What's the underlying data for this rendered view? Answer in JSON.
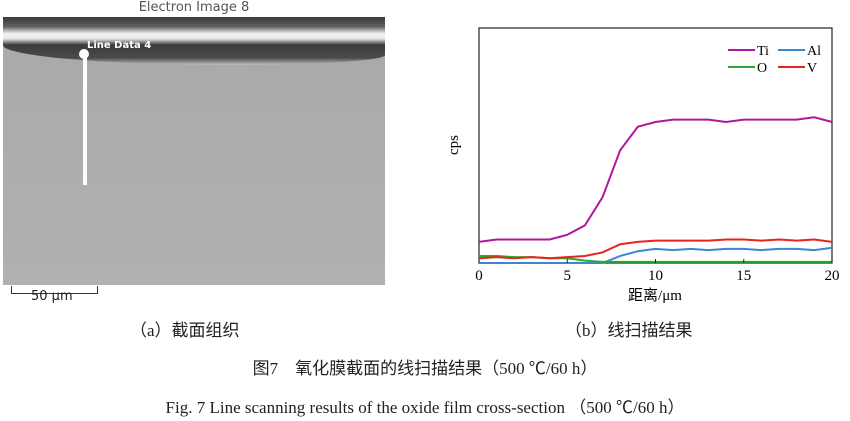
{
  "panel_a": {
    "title": "Electron Image 8",
    "line_label": "Line Data 4",
    "scale_bar": "50 µm",
    "caption": "（a）截面组织"
  },
  "panel_b": {
    "caption": "（b）线扫描结果"
  },
  "figure_caption_cn": "图7　氧化膜截面的线扫描结果（500 ℃/60 h）",
  "figure_caption_en": "Fig. 7 Line scanning results of the oxide film cross-section （500 ℃/60 h）",
  "chart_data": {
    "type": "line",
    "title": "",
    "xlabel": "距离/μm",
    "ylabel": "cps",
    "xlim": [
      0,
      20
    ],
    "ylim": [
      0,
      100
    ],
    "xticks": [
      "0",
      "5",
      "10",
      "15",
      "20"
    ],
    "legend": "top-right",
    "x": [
      0,
      1,
      2,
      3,
      4,
      5,
      6,
      7,
      8,
      9,
      10,
      11,
      12,
      13,
      14,
      15,
      16,
      17,
      18,
      19,
      20
    ],
    "series": [
      {
        "name": "Ti",
        "color": "#b0169e",
        "values": [
          9,
          10,
          10,
          10,
          10,
          12,
          16,
          28,
          48,
          58,
          60,
          61,
          61,
          61,
          60,
          61,
          61,
          61,
          61,
          62,
          60
        ]
      },
      {
        "name": "Al",
        "color": "#3a86d6",
        "values": [
          0,
          0,
          0,
          0,
          0,
          0,
          0,
          0,
          3,
          5,
          6,
          5.5,
          6,
          5.5,
          6,
          6,
          5.5,
          6,
          6,
          5.5,
          6.5
        ]
      },
      {
        "name": "O",
        "color": "#2aa832",
        "values": [
          3,
          3,
          2.5,
          2.5,
          2,
          2,
          1,
          0.5,
          0.5,
          0.5,
          0.5,
          0.5,
          0.5,
          0.5,
          0.5,
          0.5,
          0.5,
          0.5,
          0.5,
          0.5,
          0.5
        ]
      },
      {
        "name": "V",
        "color": "#e8231d",
        "values": [
          2,
          2.5,
          2,
          2.5,
          2,
          2.5,
          3,
          4.5,
          8,
          9,
          9.5,
          9.5,
          9.5,
          9.5,
          10,
          10,
          9.5,
          10,
          9.5,
          10,
          9
        ]
      }
    ]
  }
}
